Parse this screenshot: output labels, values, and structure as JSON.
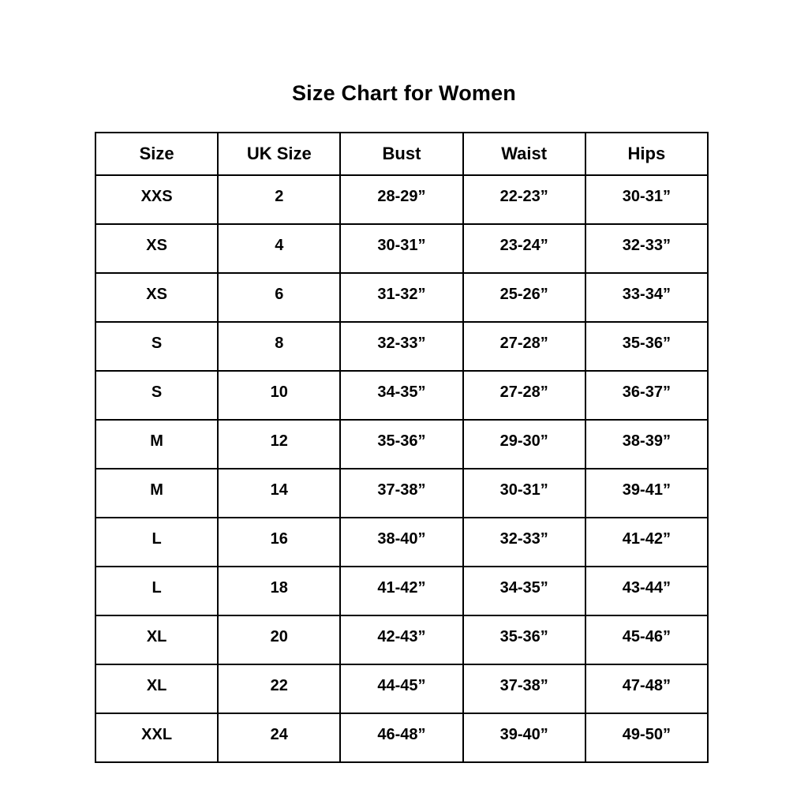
{
  "title": "Size Chart for Women",
  "chart_data": {
    "type": "table",
    "title": "Size Chart for Women",
    "columns": [
      "Size",
      "UK Size",
      "Bust",
      "Waist",
      "Hips"
    ],
    "rows": [
      [
        "XXS",
        "2",
        "28-29”",
        "22-23”",
        "30-31”"
      ],
      [
        "XS",
        "4",
        "30-31”",
        "23-24”",
        "32-33”"
      ],
      [
        "XS",
        "6",
        "31-32”",
        "25-26”",
        "33-34”"
      ],
      [
        "S",
        "8",
        "32-33”",
        "27-28”",
        "35-36”"
      ],
      [
        "S",
        "10",
        "34-35”",
        "27-28”",
        "36-37”"
      ],
      [
        "M",
        "12",
        "35-36”",
        "29-30”",
        "38-39”"
      ],
      [
        "M",
        "14",
        "37-38”",
        "30-31”",
        "39-41”"
      ],
      [
        "L",
        "16",
        "38-40”",
        "32-33”",
        "41-42”"
      ],
      [
        "L",
        "18",
        "41-42”",
        "34-35”",
        "43-44”"
      ],
      [
        "XL",
        "20",
        "42-43”",
        "35-36”",
        "45-46”"
      ],
      [
        "XL",
        "22",
        "44-45”",
        "37-38”",
        "47-48”"
      ],
      [
        "XXL",
        "24",
        "46-48”",
        "39-40”",
        "49-50”"
      ]
    ]
  }
}
